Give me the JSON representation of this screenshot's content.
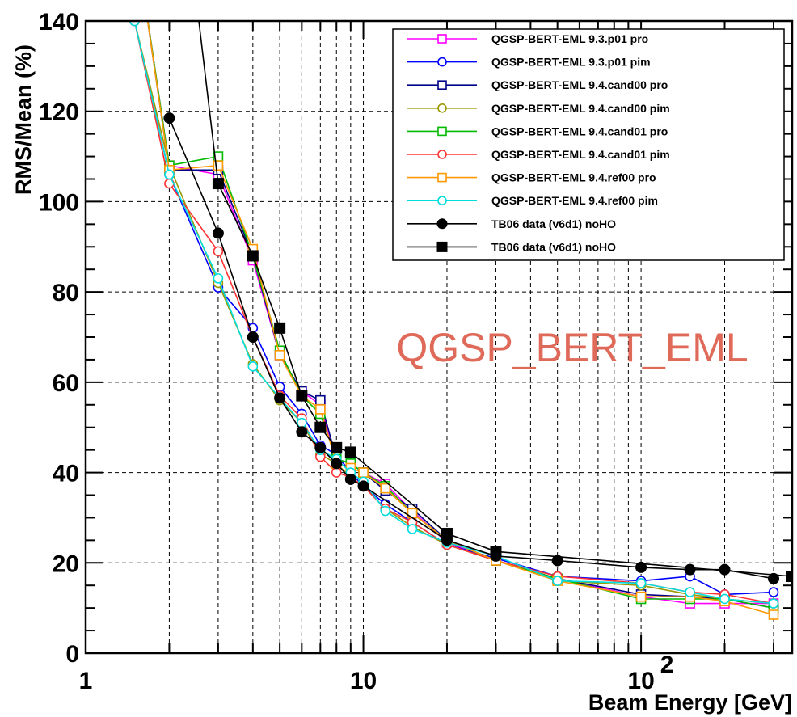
{
  "chart_data": {
    "type": "line",
    "xlabel": "Beam Energy [GeV]",
    "ylabel": "RMS/Mean (%)",
    "xscale": "log",
    "xlim": [
      1,
      350
    ],
    "ylim": [
      0,
      140
    ],
    "xticks": [
      {
        "value": 1,
        "label": "1"
      },
      {
        "value": 10,
        "label": "10"
      },
      {
        "value": 100,
        "label": "10",
        "sup": "2"
      }
    ],
    "yticks": [
      0,
      20,
      40,
      60,
      80,
      100,
      120,
      140
    ],
    "grid": true,
    "legend_position": "top-right",
    "annotation": {
      "text": "QGSP_BERT_EML",
      "color": "#e06a5a"
    },
    "series": [
      {
        "name": "QGSP-BERT-EML  9.3.p01  pro",
        "color": "#ff00ff",
        "marker": "open-square",
        "x": [
          1.5,
          2,
          3,
          4,
          5,
          6,
          7,
          8,
          9,
          10,
          12,
          15,
          20,
          30,
          50,
          100,
          150,
          200,
          300
        ],
        "y": [
          160,
          108,
          106,
          87,
          66,
          58,
          55,
          42,
          41,
          40,
          37.5,
          31.5,
          24.5,
          20.5,
          16.5,
          12.5,
          11,
          11,
          11
        ]
      },
      {
        "name": "QGSP-BERT-EML  9.3.p01  pim",
        "color": "#0000ff",
        "marker": "open-circle",
        "x": [
          1.5,
          2,
          3,
          4,
          5,
          6,
          7,
          8,
          9,
          10,
          12,
          15,
          20,
          30,
          50,
          100,
          150,
          200,
          300
        ],
        "y": [
          140,
          106,
          81,
          72,
          59,
          53,
          46,
          44,
          40,
          37,
          33,
          29,
          24,
          21,
          17,
          16,
          17,
          13,
          13.5
        ]
      },
      {
        "name": "QGSP-BERT-EML  9.4.cand00  pro",
        "color": "#000088",
        "marker": "open-square",
        "x": [
          1.5,
          2,
          3,
          4,
          5,
          6,
          7,
          8,
          9,
          10,
          12,
          15,
          20,
          30,
          50,
          100,
          150,
          200,
          300
        ],
        "y": [
          160,
          107,
          107,
          88,
          66,
          58,
          56,
          43,
          42,
          40,
          36,
          32,
          25,
          20.5,
          16.5,
          13,
          12.5,
          12,
          10
        ]
      },
      {
        "name": "QGSP-BERT-EML  9.4.cand00  pim",
        "color": "#999900",
        "marker": "open-circle",
        "x": [
          1.5,
          2,
          3,
          4,
          5,
          6,
          7,
          8,
          9,
          10,
          12,
          15,
          20,
          30,
          50,
          100,
          150,
          200,
          300
        ],
        "y": [
          140,
          108,
          82,
          64,
          56,
          51,
          44,
          42,
          39,
          37,
          32,
          28,
          24,
          20.5,
          16,
          15,
          13,
          12,
          11
        ]
      },
      {
        "name": "QGSP-BERT-EML  9.4.cand01  pro",
        "color": "#00bb00",
        "marker": "open-square",
        "x": [
          1.5,
          2,
          3,
          4,
          5,
          6,
          7,
          8,
          9,
          10,
          12,
          15,
          20,
          30,
          50,
          100,
          150,
          200,
          300
        ],
        "y": [
          160,
          108,
          110,
          88,
          67,
          57,
          53,
          43,
          42,
          40,
          37,
          31,
          25,
          20.5,
          16.5,
          12,
          12,
          12,
          10
        ]
      },
      {
        "name": "QGSP-BERT-EML  9.4.cand01  pim",
        "color": "#ff3333",
        "marker": "open-circle",
        "x": [
          1.5,
          2,
          3,
          4,
          5,
          6,
          7,
          8,
          9,
          10,
          12,
          15,
          20,
          30,
          50,
          100,
          150,
          200,
          300
        ],
        "y": [
          140,
          104,
          89,
          70,
          57,
          52,
          43.5,
          40,
          39,
          37,
          32,
          29,
          24,
          20.5,
          17,
          15.5,
          13.5,
          13,
          11
        ]
      },
      {
        "name": "QGSP-BERT-EML  9.4.ref00  pro",
        "color": "#ff9900",
        "marker": "open-square",
        "x": [
          1.5,
          2,
          3,
          4,
          5,
          6,
          7,
          8,
          9,
          10,
          12,
          15,
          20,
          30,
          50,
          100,
          150,
          200,
          300
        ],
        "y": [
          160,
          107,
          108,
          89.5,
          66,
          57,
          54,
          42,
          41,
          40,
          36.5,
          31,
          25,
          20.5,
          16,
          12.5,
          12.5,
          11.5,
          8.5
        ]
      },
      {
        "name": "QGSP-BERT-EML  9.4.ref00  pim",
        "color": "#00dddd",
        "marker": "open-circle",
        "x": [
          1.5,
          2,
          3,
          4,
          5,
          6,
          7,
          8,
          9,
          10,
          12,
          15,
          20,
          30,
          50,
          100,
          150,
          200,
          300
        ],
        "y": [
          140,
          106,
          83,
          63.5,
          56.5,
          51,
          45,
          43,
          40,
          38,
          31.5,
          27.5,
          24.5,
          21.5,
          16,
          15.5,
          13.5,
          12,
          11
        ]
      },
      {
        "name": "TB06 data (v6d1) noHO",
        "color": "#000000",
        "marker": "filled-circle",
        "x": [
          2,
          3,
          4,
          5,
          6,
          7,
          8,
          9,
          10,
          20,
          30,
          50,
          100,
          150,
          200,
          300
        ],
        "y": [
          118.5,
          93,
          70,
          56.5,
          49,
          45.5,
          42,
          38.5,
          37,
          25,
          21.5,
          20.5,
          19,
          18.5,
          18.5,
          16.5
        ]
      },
      {
        "name": "TB06 data (v6d1) noHO",
        "color": "#000000",
        "marker": "filled-square",
        "x": [
          2.5,
          3,
          4,
          5,
          6,
          7,
          8,
          9,
          20,
          30,
          350
        ],
        "y": [
          145,
          104,
          88,
          72,
          57,
          50,
          45.5,
          44.5,
          26.5,
          22.5,
          17
        ]
      }
    ]
  }
}
